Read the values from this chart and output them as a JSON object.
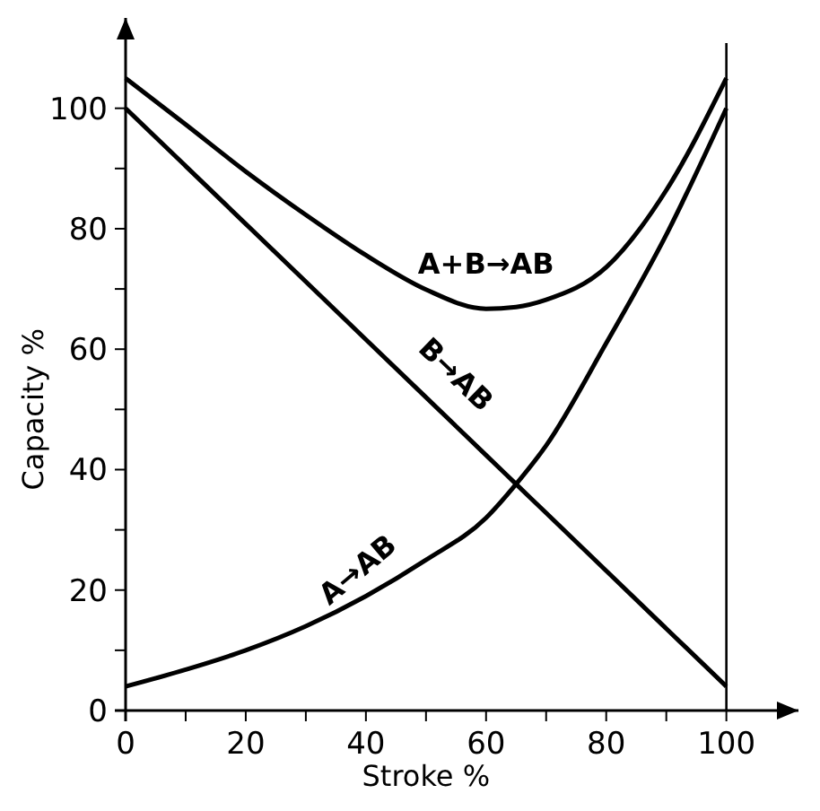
{
  "chart_data": {
    "type": "line",
    "xlabel": "Stroke %",
    "ylabel": "Capacity %",
    "xlim": [
      0,
      112
    ],
    "ylim": [
      0,
      115
    ],
    "xticks": [
      0,
      {
        "value": 10,
        "label": null
      },
      20,
      {
        "value": 30,
        "label": null
      },
      40,
      {
        "value": 50,
        "label": null
      },
      60,
      {
        "value": 70,
        "label": null
      },
      80,
      {
        "value": 90,
        "label": null
      },
      100
    ],
    "yticks": [
      0,
      {
        "value": 10,
        "label": null
      },
      20,
      {
        "value": 30,
        "label": null
      },
      40,
      {
        "value": 50,
        "label": null
      },
      60,
      {
        "value": 70,
        "label": null
      },
      80,
      {
        "value": 90,
        "label": null
      },
      100
    ],
    "x": [
      0,
      10,
      20,
      30,
      40,
      50,
      60,
      65,
      70,
      80,
      90,
      100
    ],
    "series": [
      {
        "name": "A+B→AB",
        "color": "#000000",
        "values": [
          105,
          97.3,
          89.5,
          82.3,
          75.6,
          69.9,
          66.7,
          67,
          68.2,
          73.6,
          86.4,
          105
        ]
      },
      {
        "name": "B→AB",
        "color": "#000000",
        "values": [
          100,
          90.4,
          80.8,
          71.2,
          61.6,
          52,
          42.4,
          37.6,
          32.8,
          23.2,
          13.6,
          4
        ]
      },
      {
        "name": "A→AB",
        "color": "#000000",
        "values": [
          4,
          6.8,
          10,
          14,
          19,
          25,
          32,
          37.6,
          44,
          61,
          79,
          100
        ]
      }
    ],
    "ref_lines": [
      {
        "axis": "x",
        "value": 100,
        "color": "#000000"
      }
    ],
    "grid": false,
    "line_style": "solid",
    "marker": "none"
  }
}
